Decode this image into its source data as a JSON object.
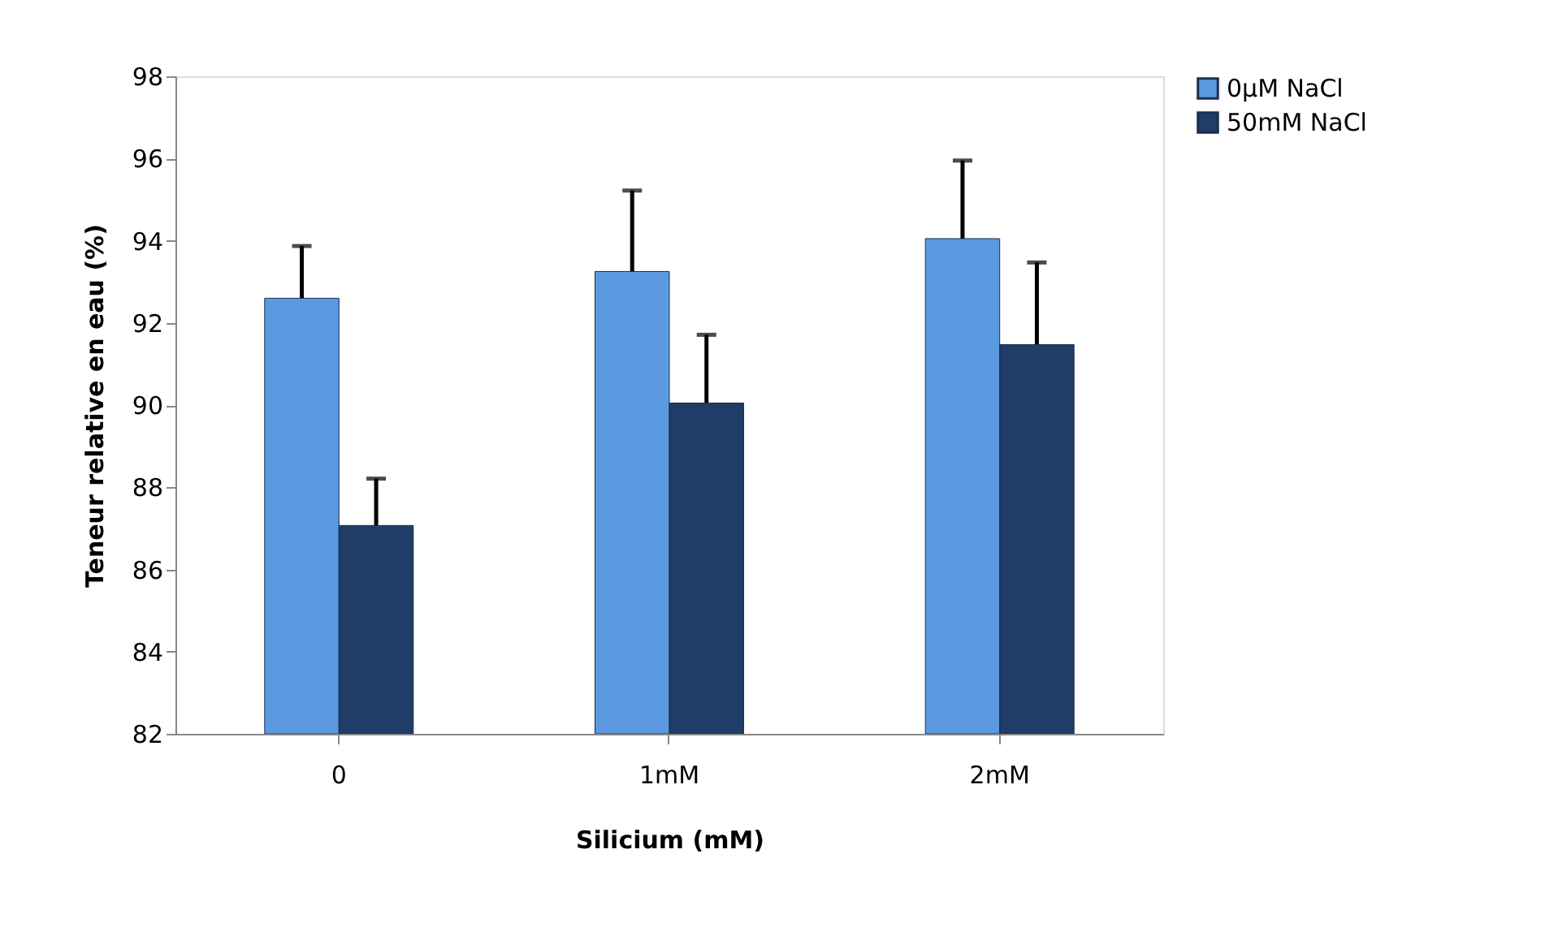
{
  "chart_data": {
    "type": "bar",
    "xlabel": "Silicium (mM)",
    "ylabel": "Teneur relative en eau (%)",
    "categories": [
      "0",
      "1mM",
      "2mM"
    ],
    "series": [
      {
        "name": "0µM NaCl",
        "color": "#5b9ae0",
        "values": [
          92.6,
          93.25,
          94.05
        ],
        "errors": [
          1.27,
          1.97,
          1.9
        ]
      },
      {
        "name": "50mM NaCl",
        "color": "#1f3d66",
        "values": [
          87.07,
          90.05,
          91.47
        ],
        "errors": [
          1.14,
          1.66,
          2.0
        ]
      }
    ],
    "ylim": [
      82,
      98
    ],
    "yticks": [
      82,
      84,
      86,
      88,
      90,
      92,
      94,
      96,
      98
    ],
    "grid": false,
    "legend": "right"
  }
}
